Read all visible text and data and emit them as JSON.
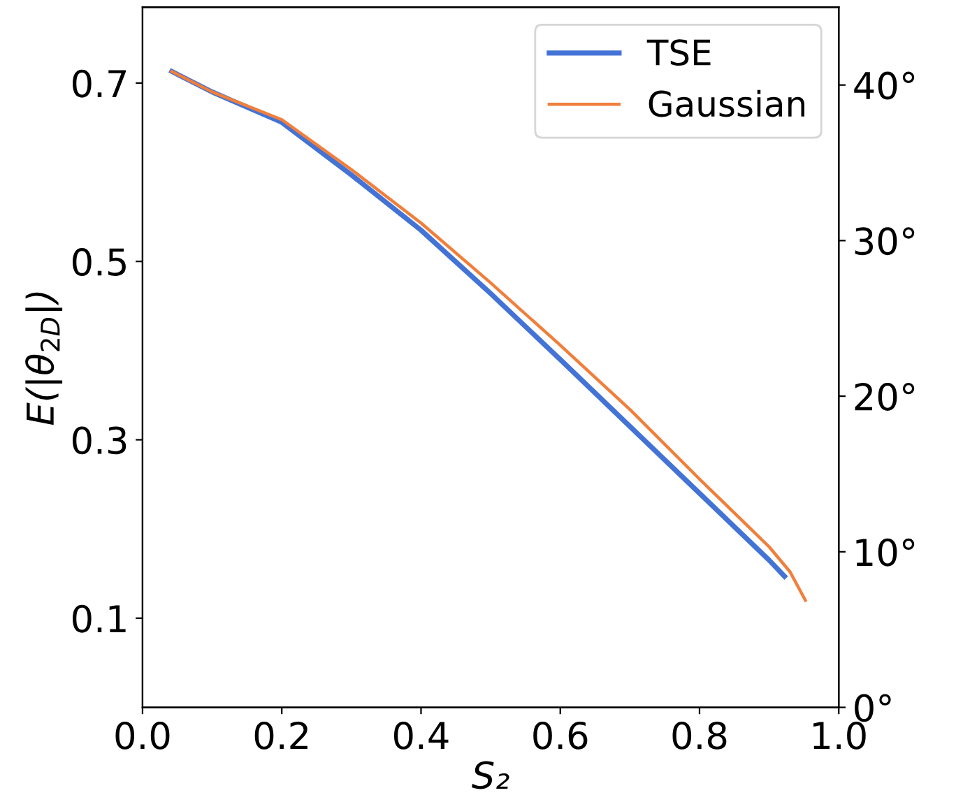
{
  "chart_data": {
    "type": "line",
    "xlabel": "S₂",
    "ylabel": "E(|θ$_{2D}$|)",
    "xlim": [
      0.0,
      1.0
    ],
    "xticks": [
      {
        "value": 0.0,
        "label": "0.0"
      },
      0.2,
      0.4,
      0.6,
      0.8,
      {
        "value": 1.0,
        "label": "1.0"
      }
    ],
    "ylim": [
      0.0,
      0.785
    ],
    "yticks": [
      0.1,
      0.3,
      0.5,
      0.7
    ],
    "y2lim": [
      0,
      45
    ],
    "y2ticks": [
      {
        "value": 0,
        "label": "0°"
      },
      {
        "value": 10,
        "label": "10°"
      },
      {
        "value": 20,
        "label": "20°"
      },
      {
        "value": 30,
        "label": "30°"
      },
      {
        "value": 40,
        "label": "40°"
      }
    ],
    "legend": "top right",
    "grid": false,
    "series": [
      {
        "name": "TSE",
        "color": "#4473d6",
        "x": [
          0.042,
          0.1,
          0.2,
          0.3,
          0.4,
          0.5,
          0.6,
          0.7,
          0.8,
          0.9,
          0.922
        ],
        "values": [
          0.713,
          0.69,
          0.656,
          0.597,
          0.535,
          0.464,
          0.39,
          0.315,
          0.24,
          0.165,
          0.147
        ]
      },
      {
        "name": "Gaussian",
        "color": "#f07f3c",
        "x": [
          0.042,
          0.1,
          0.2,
          0.3,
          0.4,
          0.5,
          0.6,
          0.7,
          0.8,
          0.9,
          0.93,
          0.952
        ],
        "values": [
          0.713,
          0.69,
          0.659,
          0.603,
          0.543,
          0.476,
          0.406,
          0.334,
          0.256,
          0.18,
          0.152,
          0.12
        ]
      }
    ]
  }
}
